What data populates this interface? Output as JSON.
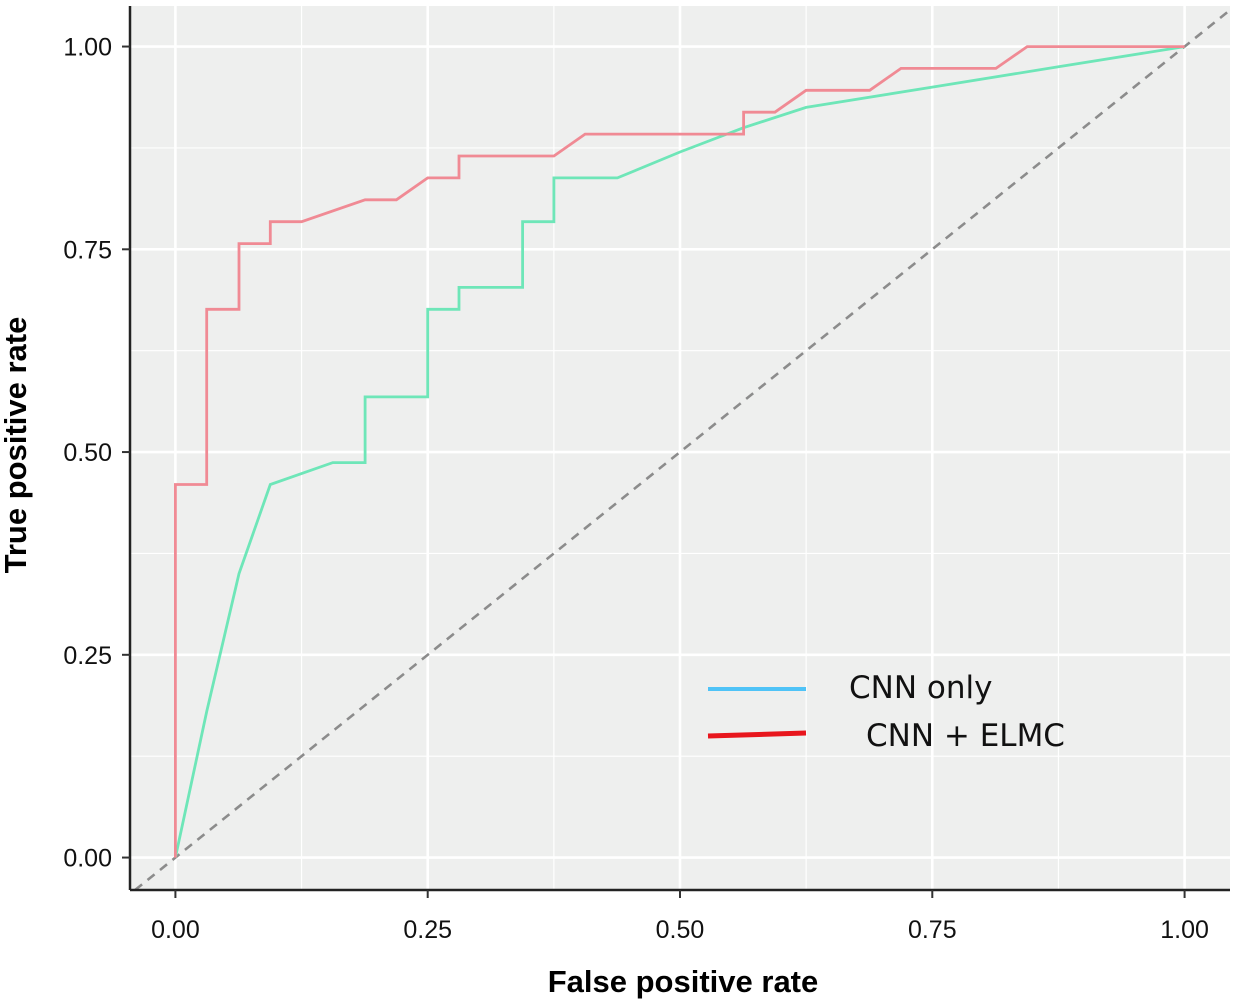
{
  "chart_data": {
    "type": "line",
    "title": "",
    "xlabel": "False positive rate",
    "ylabel": "True positive rate",
    "xlim": [
      -0.045,
      1.045
    ],
    "ylim": [
      -0.04,
      1.05
    ],
    "x_ticks": [
      "0.00",
      "0.25",
      "0.50",
      "0.75",
      "1.00"
    ],
    "y_ticks": [
      "0.00",
      "0.25",
      "0.50",
      "0.75",
      "1.00"
    ],
    "grid": true,
    "legend_position": "bottom-right",
    "reference_line": {
      "x": [
        0,
        1
      ],
      "y": [
        0,
        1
      ],
      "style": "dashed",
      "color": "#8c8c8c"
    },
    "series": [
      {
        "name": "CNN only",
        "color": "#6ee6b8",
        "legend_color": "#4fc3f7",
        "x": [
          0,
          0.031,
          0.063,
          0.094,
          0.156,
          0.188,
          0.188,
          0.25,
          0.25,
          0.281,
          0.281,
          0.344,
          0.344,
          0.375,
          0.375,
          0.438,
          0.5,
          0.563,
          0.625,
          0.75,
          0.875,
          1.0
        ],
        "y": [
          0,
          0.18,
          0.35,
          0.46,
          0.487,
          0.487,
          0.568,
          0.568,
          0.676,
          0.676,
          0.703,
          0.703,
          0.784,
          0.784,
          0.838,
          0.838,
          0.87,
          0.9,
          0.925,
          0.95,
          0.975,
          1.0
        ]
      },
      {
        "name": "CNN + ELMC",
        "color": "#f08a94",
        "legend_color": "#e8161d",
        "x": [
          0,
          0,
          0.031,
          0.031,
          0.063,
          0.063,
          0.094,
          0.094,
          0.125,
          0.188,
          0.219,
          0.25,
          0.281,
          0.281,
          0.344,
          0.375,
          0.406,
          0.5,
          0.563,
          0.563,
          0.594,
          0.625,
          0.656,
          0.688,
          0.719,
          0.75,
          0.781,
          0.813,
          0.844,
          0.875,
          0.938,
          1.0
        ],
        "y": [
          0,
          0.46,
          0.46,
          0.676,
          0.676,
          0.757,
          0.757,
          0.784,
          0.784,
          0.811,
          0.811,
          0.838,
          0.838,
          0.865,
          0.865,
          0.865,
          0.892,
          0.892,
          0.892,
          0.919,
          0.919,
          0.946,
          0.946,
          0.946,
          0.973,
          0.973,
          0.973,
          0.973,
          1.0,
          1.0,
          1.0,
          1.0
        ]
      }
    ]
  }
}
